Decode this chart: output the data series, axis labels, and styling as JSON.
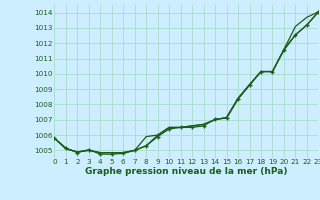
{
  "title": "Graphe pression niveau de la mer (hPa)",
  "background_color": "#cceeff",
  "grid_color": "#b0ddd0",
  "line_color": "#1a5c1a",
  "xlim": [
    0,
    23
  ],
  "ylim": [
    1004.5,
    1014.5
  ],
  "yticks": [
    1005,
    1006,
    1007,
    1008,
    1009,
    1010,
    1011,
    1012,
    1013,
    1014
  ],
  "xticks": [
    0,
    1,
    2,
    3,
    4,
    5,
    6,
    7,
    8,
    9,
    10,
    11,
    12,
    13,
    14,
    15,
    16,
    17,
    18,
    19,
    20,
    21,
    22,
    23
  ],
  "series_no_marker_1": [
    1005.8,
    1005.1,
    1004.9,
    1005.0,
    1004.85,
    1004.85,
    1004.85,
    1005.0,
    1005.9,
    1006.0,
    1006.5,
    1006.5,
    1006.6,
    1006.7,
    1007.0,
    1007.15,
    1008.4,
    1009.3,
    1010.15,
    1010.15,
    1011.6,
    1013.1,
    1013.7,
    1014.05
  ],
  "series_no_marker_2": [
    1005.8,
    1005.1,
    1004.9,
    1005.0,
    1004.85,
    1004.85,
    1004.85,
    1005.0,
    1005.3,
    1006.0,
    1006.5,
    1006.5,
    1006.6,
    1006.7,
    1007.0,
    1007.15,
    1008.4,
    1009.3,
    1010.15,
    1010.15,
    1011.6,
    1012.55,
    1013.2,
    1014.05
  ],
  "series_with_marker": [
    1005.8,
    1005.15,
    1004.85,
    1005.05,
    1004.75,
    1004.75,
    1004.8,
    1005.0,
    1005.3,
    1005.9,
    1006.4,
    1006.5,
    1006.5,
    1006.6,
    1007.05,
    1007.1,
    1008.35,
    1009.25,
    1010.15,
    1010.15,
    1011.55,
    1012.55,
    1013.2,
    1014.05
  ]
}
